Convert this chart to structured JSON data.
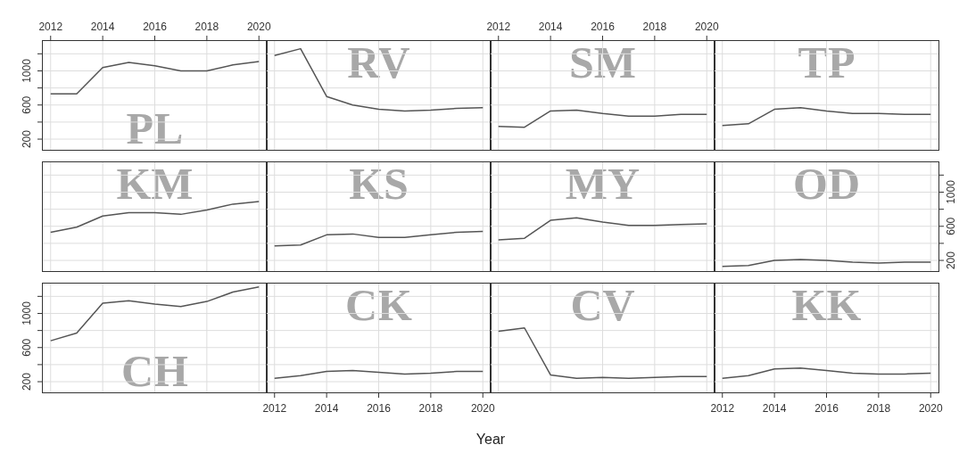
{
  "chart_data": [
    {
      "type": "line",
      "title": "PL",
      "x": [
        2012,
        2013,
        2014,
        2015,
        2016,
        2017,
        2018,
        2019,
        2020
      ],
      "values": [
        730,
        730,
        1040,
        1100,
        1060,
        1000,
        1000,
        1070,
        1110
      ],
      "color": "#555555",
      "xlim": [
        2011.7,
        2020.3
      ],
      "xticks": [
        2012,
        2014,
        2016,
        2018,
        2020
      ],
      "ylim": [
        75,
        1350
      ],
      "yticks": [
        200,
        {
          "value": 400,
          "label": null
        },
        600,
        {
          "value": 800,
          "label": null
        },
        1000,
        {
          "value": 1200,
          "label": null
        }
      ],
      "grid": true
    },
    {
      "type": "line",
      "title": "RV",
      "x": [
        2012,
        2013,
        2014,
        2015,
        2016,
        2017,
        2018,
        2019,
        2020
      ],
      "values": [
        1180,
        1260,
        700,
        600,
        550,
        530,
        540,
        560,
        570
      ],
      "color": "#555555",
      "xlim": [
        2011.7,
        2020.3
      ],
      "xticks": [
        2012,
        2014,
        2016,
        2018,
        2020
      ],
      "ylim": [
        75,
        1350
      ],
      "yticks": [
        200,
        {
          "value": 400,
          "label": null
        },
        600,
        {
          "value": 800,
          "label": null
        },
        1000,
        {
          "value": 1200,
          "label": null
        }
      ],
      "grid": true,
      "tick_labels": false
    },
    {
      "type": "line",
      "title": "SM",
      "x": [
        2012,
        2013,
        2014,
        2015,
        2016,
        2017,
        2018,
        2019,
        2020
      ],
      "values": [
        350,
        340,
        530,
        540,
        500,
        470,
        470,
        490,
        490
      ],
      "color": "#555555",
      "xlim": [
        2011.7,
        2020.3
      ],
      "xticks": [
        2012,
        2014,
        2016,
        2018,
        2020
      ],
      "ylim": [
        75,
        1350
      ],
      "yticks": [
        200,
        {
          "value": 400,
          "label": null
        },
        600,
        {
          "value": 800,
          "label": null
        },
        1000,
        {
          "value": 1200,
          "label": null
        }
      ],
      "grid": true,
      "tick_labels": "x"
    },
    {
      "type": "line",
      "title": "TP",
      "x": [
        2012,
        2013,
        2014,
        2015,
        2016,
        2017,
        2018,
        2019,
        2020
      ],
      "values": [
        360,
        380,
        550,
        570,
        530,
        500,
        500,
        490,
        490
      ],
      "color": "#555555",
      "xlim": [
        2011.7,
        2020.3
      ],
      "xticks": [
        2012,
        2014,
        2016,
        2018,
        2020
      ],
      "ylim": [
        75,
        1350
      ],
      "yticks": [
        200,
        {
          "value": 400,
          "label": null
        },
        600,
        {
          "value": 800,
          "label": null
        },
        1000,
        {
          "value": 1200,
          "label": null
        }
      ],
      "grid": true,
      "tick_labels": false
    },
    {
      "type": "line",
      "title": "KM",
      "x": [
        2012,
        2013,
        2014,
        2015,
        2016,
        2017,
        2018,
        2019,
        2020
      ],
      "values": [
        530,
        590,
        720,
        760,
        760,
        740,
        790,
        860,
        890
      ],
      "color": "#555555",
      "xlim": [
        2011.7,
        2020.3
      ],
      "xticks": [
        2012,
        2014,
        2016,
        2018,
        2020
      ],
      "ylim": [
        75,
        1350
      ],
      "yticks": [
        200,
        {
          "value": 400,
          "label": null
        },
        600,
        {
          "value": 800,
          "label": null
        },
        1000,
        {
          "value": 1200,
          "label": null
        }
      ],
      "grid": true,
      "tick_labels": false
    },
    {
      "type": "line",
      "title": "KS",
      "x": [
        2012,
        2013,
        2014,
        2015,
        2016,
        2017,
        2018,
        2019,
        2020
      ],
      "values": [
        370,
        380,
        500,
        510,
        470,
        470,
        500,
        530,
        540
      ],
      "color": "#555555",
      "xlim": [
        2011.7,
        2020.3
      ],
      "xticks": [
        2012,
        2014,
        2016,
        2018,
        2020
      ],
      "ylim": [
        75,
        1350
      ],
      "yticks": [
        200,
        {
          "value": 400,
          "label": null
        },
        600,
        {
          "value": 800,
          "label": null
        },
        1000,
        {
          "value": 1200,
          "label": null
        }
      ],
      "grid": true,
      "tick_labels": false
    },
    {
      "type": "line",
      "title": "MY",
      "x": [
        2012,
        2013,
        2014,
        2015,
        2016,
        2017,
        2018,
        2019,
        2020
      ],
      "values": [
        440,
        460,
        670,
        700,
        650,
        610,
        610,
        620,
        630
      ],
      "color": "#555555",
      "xlim": [
        2011.7,
        2020.3
      ],
      "xticks": [
        2012,
        2014,
        2016,
        2018,
        2020
      ],
      "ylim": [
        75,
        1350
      ],
      "yticks": [
        200,
        {
          "value": 400,
          "label": null
        },
        600,
        {
          "value": 800,
          "label": null
        },
        1000,
        {
          "value": 1200,
          "label": null
        }
      ],
      "grid": true,
      "tick_labels": false
    },
    {
      "type": "line",
      "title": "OD",
      "x": [
        2012,
        2013,
        2014,
        2015,
        2016,
        2017,
        2018,
        2019,
        2020
      ],
      "values": [
        130,
        140,
        200,
        210,
        200,
        180,
        170,
        180,
        180
      ],
      "color": "#555555",
      "xlim": [
        2011.7,
        2020.3
      ],
      "xticks": [
        2012,
        2014,
        2016,
        2018,
        2020
      ],
      "ylim": [
        75,
        1350
      ],
      "yticks": [
        200,
        {
          "value": 400,
          "label": null
        },
        600,
        {
          "value": 800,
          "label": null
        },
        1000,
        {
          "value": 1200,
          "label": null
        }
      ],
      "grid": true,
      "tick_labels": "y"
    },
    {
      "type": "line",
      "title": "CH",
      "x": [
        2012,
        2013,
        2014,
        2015,
        2016,
        2017,
        2018,
        2019,
        2020
      ],
      "values": [
        680,
        770,
        1120,
        1150,
        1110,
        1080,
        1140,
        1250,
        1310
      ],
      "color": "#555555",
      "xlim": [
        2011.7,
        2020.3
      ],
      "xticks": [
        2012,
        2014,
        2016,
        2018,
        2020
      ],
      "ylim": [
        75,
        1350
      ],
      "yticks": [
        200,
        {
          "value": 400,
          "label": null
        },
        600,
        {
          "value": 800,
          "label": null
        },
        1000,
        {
          "value": 1200,
          "label": null
        }
      ],
      "grid": true,
      "tick_labels": "y"
    },
    {
      "type": "line",
      "title": "CK",
      "x": [
        2012,
        2013,
        2014,
        2015,
        2016,
        2017,
        2018,
        2019,
        2020
      ],
      "values": [
        240,
        270,
        320,
        330,
        310,
        290,
        300,
        320,
        320
      ],
      "color": "#555555",
      "xlim": [
        2011.7,
        2020.3
      ],
      "xticks": [
        2012,
        2014,
        2016,
        2018,
        2020
      ],
      "ylim": [
        75,
        1350
      ],
      "yticks": [
        200,
        {
          "value": 400,
          "label": null
        },
        600,
        {
          "value": 800,
          "label": null
        },
        1000,
        {
          "value": 1200,
          "label": null
        }
      ],
      "grid": true,
      "tick_labels": "x"
    },
    {
      "type": "line",
      "title": "CV",
      "xlabel": "Year",
      "x": [
        2012,
        2013,
        2014,
        2015,
        2016,
        2017,
        2018,
        2019,
        2020
      ],
      "values": [
        790,
        830,
        280,
        240,
        250,
        240,
        250,
        260,
        260
      ],
      "color": "#555555",
      "xlim": [
        2011.7,
        2020.3
      ],
      "xticks": [
        2012,
        2014,
        2016,
        2018,
        2020
      ],
      "ylim": [
        75,
        1350
      ],
      "yticks": [
        200,
        {
          "value": 400,
          "label": null
        },
        600,
        {
          "value": 800,
          "label": null
        },
        1000,
        {
          "value": 1200,
          "label": null
        }
      ],
      "grid": true,
      "tick_labels": false
    },
    {
      "type": "line",
      "title": "KK",
      "x": [
        2012,
        2013,
        2014,
        2015,
        2016,
        2017,
        2018,
        2019,
        2020
      ],
      "values": [
        240,
        270,
        350,
        360,
        330,
        300,
        290,
        290,
        300
      ],
      "color": "#555555",
      "xlim": [
        2011.7,
        2020.3
      ],
      "xticks": [
        2012,
        2014,
        2016,
        2018,
        2020
      ],
      "ylim": [
        75,
        1350
      ],
      "yticks": [
        200,
        {
          "value": 400,
          "label": null
        },
        600,
        {
          "value": 800,
          "label": null
        },
        1000,
        {
          "value": 1200,
          "label": null
        }
      ],
      "grid": true,
      "tick_labels": "x"
    }
  ]
}
